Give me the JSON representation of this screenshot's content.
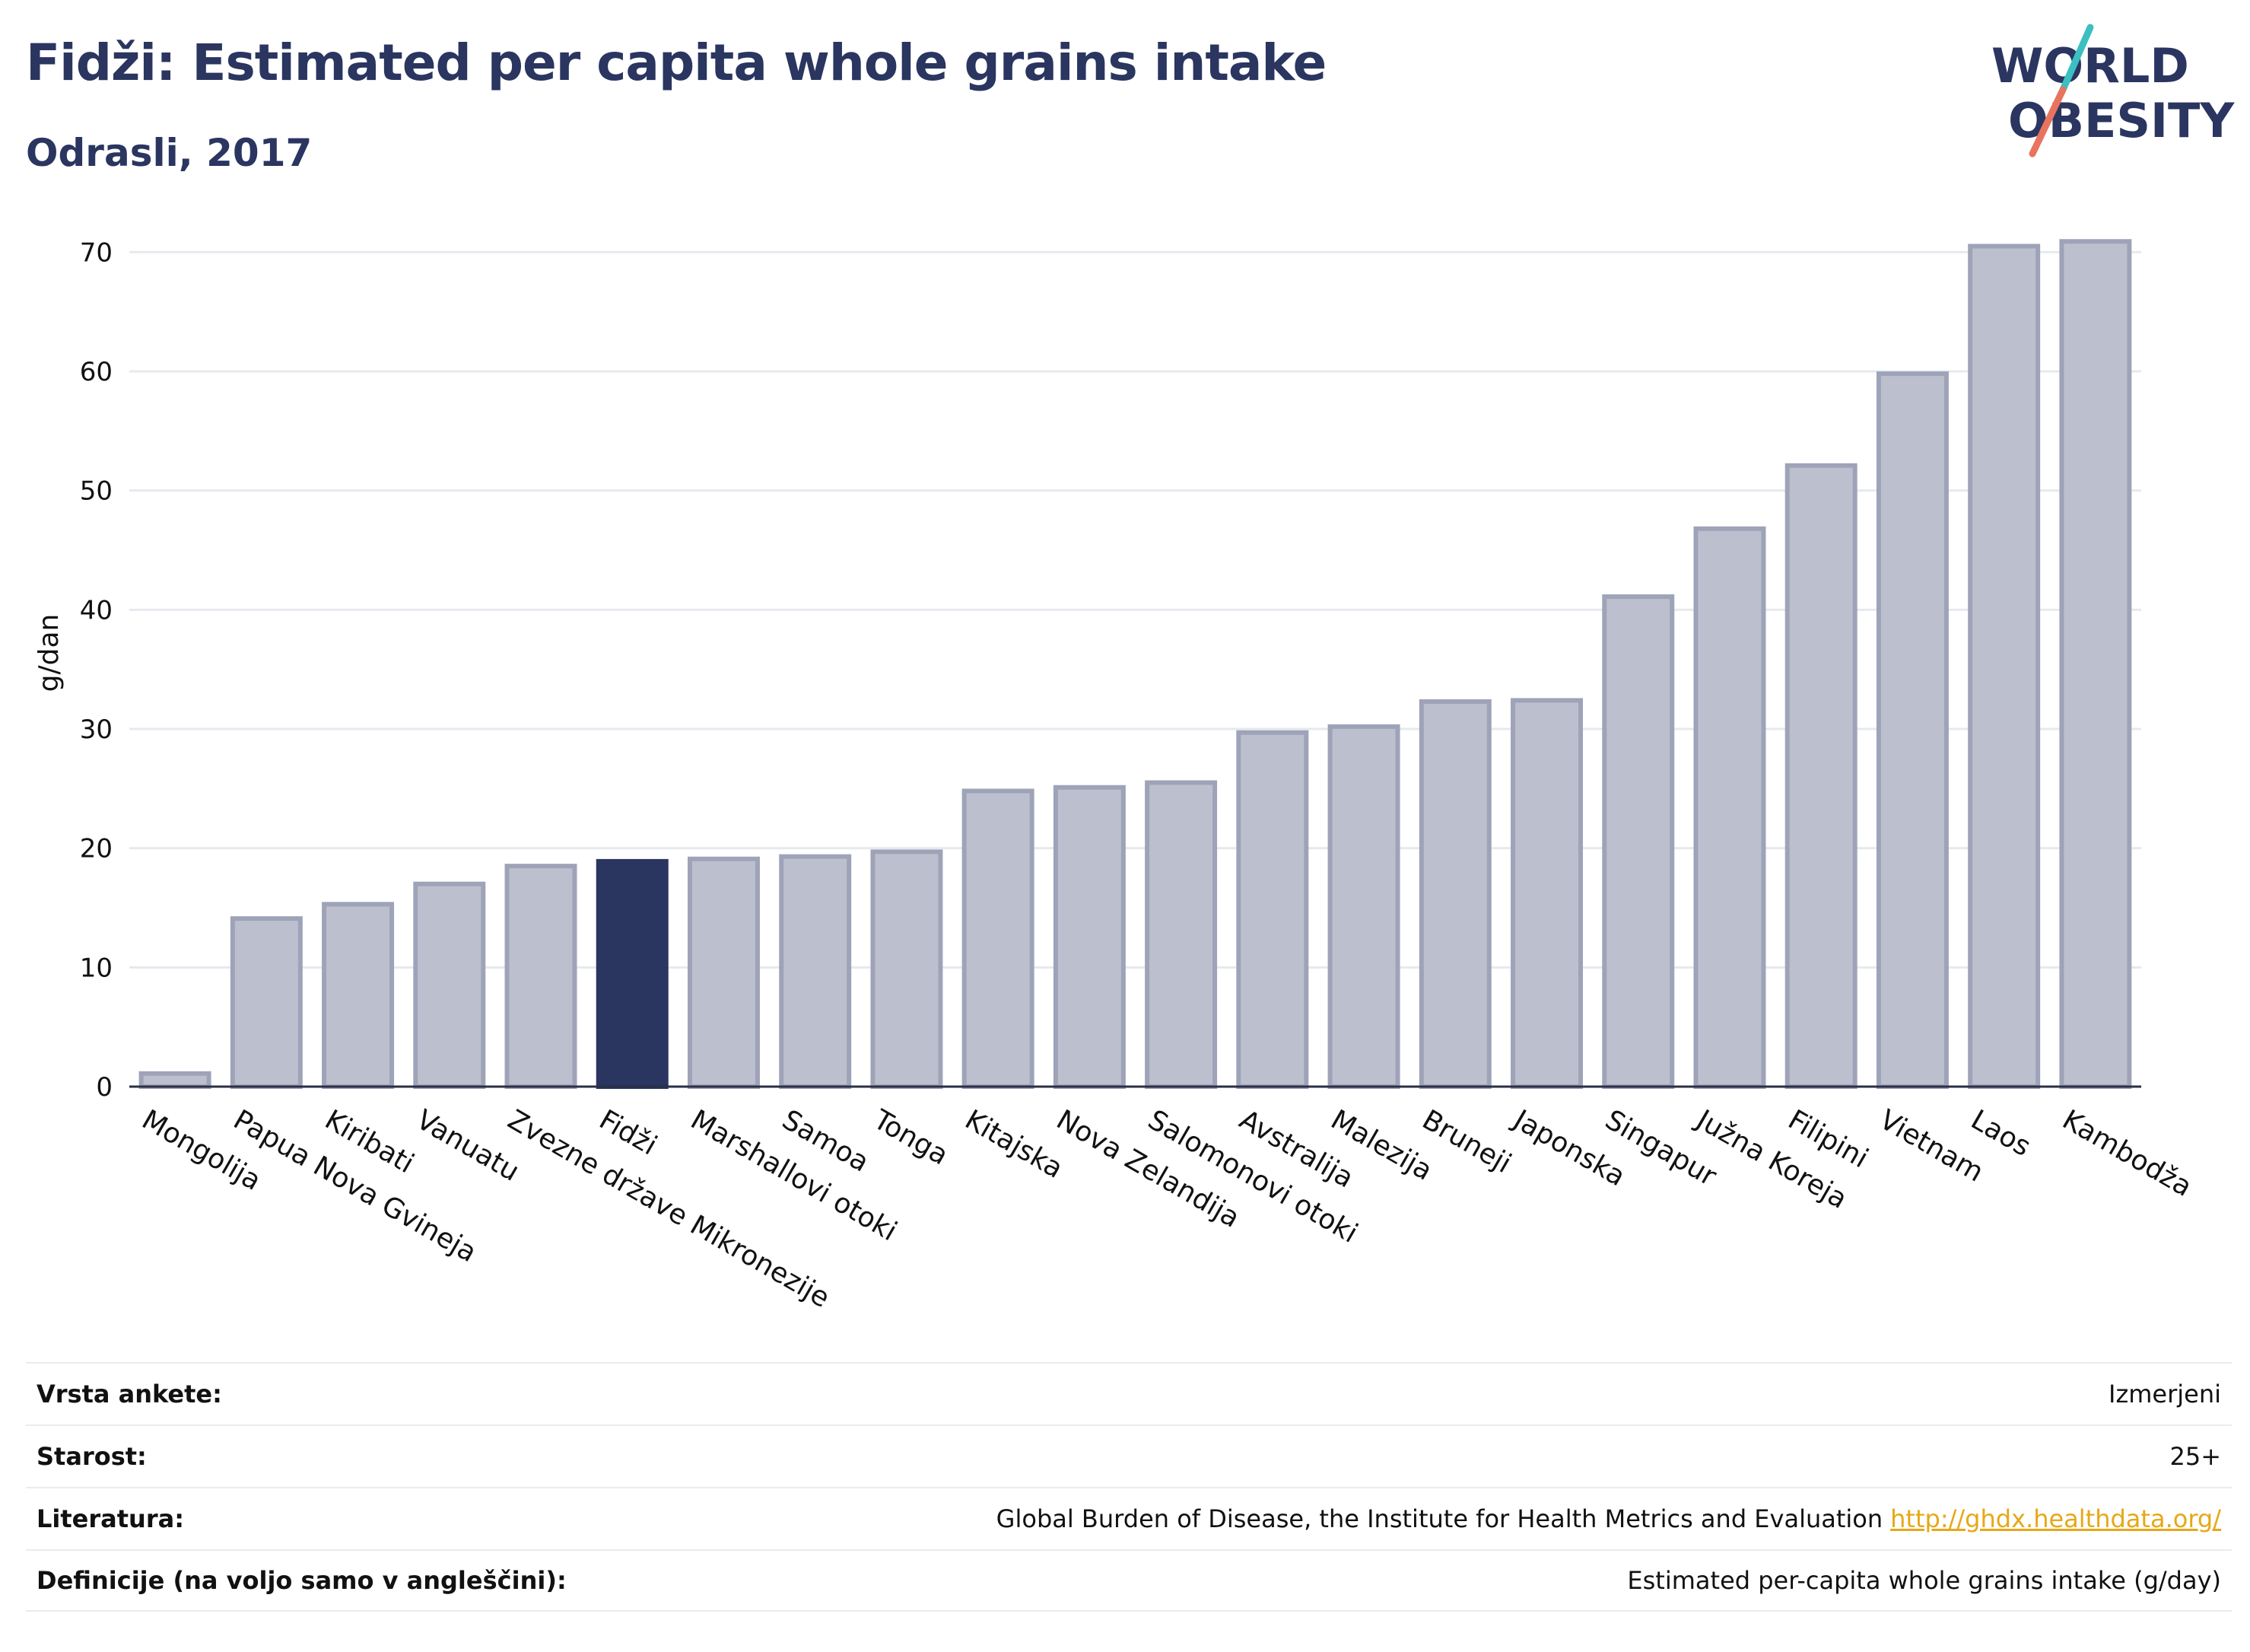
{
  "header": {
    "title": "Fidži: Estimated per capita whole grains intake",
    "subtitle": "Odrasli, 2017"
  },
  "logo": {
    "line1": "WORLD",
    "line2": "OBESITY",
    "colors": {
      "text": "#2a3560",
      "teal": "#3bbfc1",
      "coral": "#e8735f"
    }
  },
  "chart_data": {
    "type": "bar",
    "title": "Fidži: Estimated per capita whole grains intake",
    "subtitle": "Odrasli, 2017",
    "ylabel": "g/dan",
    "xlabel": "",
    "ylim": [
      0,
      72
    ],
    "yticks": [
      0,
      10,
      20,
      30,
      40,
      50,
      60,
      70
    ],
    "grid": true,
    "highlight": "Fidži",
    "colors": {
      "bar": "#bcc0ce",
      "bar_edge": "#9ea3b8",
      "highlight": "#2a3560",
      "grid": "#e6e9ee",
      "axis": "#2a2f45"
    },
    "categories": [
      "Mongolija",
      "Papua Nova Gvineja",
      "Kiribati",
      "Vanuatu",
      "Zvezne države Mikronezije",
      "Fidži",
      "Marshallovi otoki",
      "Samoa",
      "Tonga",
      "Kitajska",
      "Nova Zelandija",
      "Salomonovi otoki",
      "Avstralija",
      "Malezija",
      "Bruneji",
      "Japonska",
      "Singapur",
      "Južna Koreja",
      "Filipini",
      "Vietnam",
      "Laos",
      "Kambodža"
    ],
    "values": [
      1.1,
      14.1,
      15.3,
      17.0,
      18.5,
      18.9,
      19.1,
      19.3,
      19.7,
      24.8,
      25.1,
      25.5,
      29.7,
      30.2,
      32.3,
      32.4,
      41.1,
      46.8,
      52.1,
      59.8,
      70.5,
      70.9
    ]
  },
  "info_table": [
    {
      "label": "Vrsta ankete:",
      "value": "Izmerjeni"
    },
    {
      "label": "Starost:",
      "value": "25+"
    },
    {
      "label": "Literatura:",
      "value": "Global Burden of Disease, the Institute for Health Metrics and Evaluation",
      "link": "http://ghdx.healthdata.org/"
    },
    {
      "label": "Definicije (na voljo samo v angleščini):",
      "value": "Estimated per-capita whole grains intake (g/day)"
    }
  ]
}
